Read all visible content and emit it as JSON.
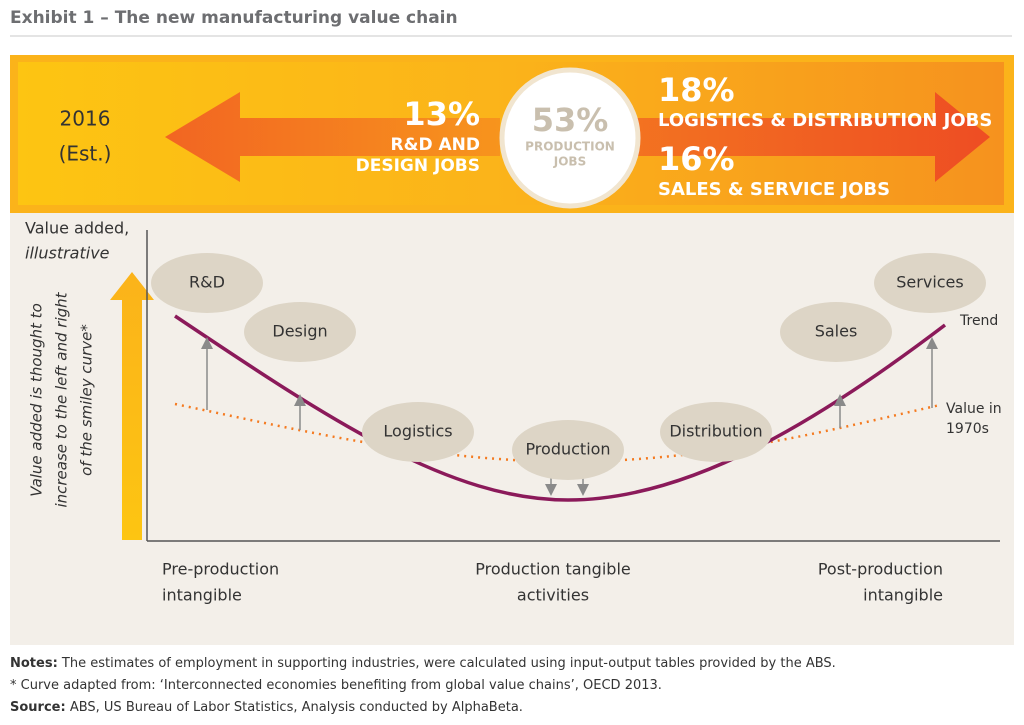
{
  "header": {
    "title": "Exhibit 1 – The new manufacturing value chain"
  },
  "banner": {
    "year": "2016",
    "year_note": "(Est.)",
    "left": {
      "percent": "13%",
      "line1": "R&D AND",
      "line2": "DESIGN JOBS"
    },
    "center": {
      "percent": "53%",
      "line1": "PRODUCTION",
      "line2": "JOBS"
    },
    "right_top": {
      "percent": "18%",
      "label": "LOGISTICS & DISTRIBUTION JOBS"
    },
    "right_bottom": {
      "percent": "16%",
      "label": "SALES & SERVICE JOBS"
    }
  },
  "diagram": {
    "y_label": {
      "line1": "Value added,",
      "line2": "illustrative"
    },
    "side_note": [
      "Value added is thought to",
      "increase to the left and right",
      "of the smiley curve*"
    ],
    "stages": [
      "R&D",
      "Design",
      "Logistics",
      "Production",
      "Distribution",
      "Sales",
      "Services"
    ],
    "trend_label": "Trend",
    "baseline_label": [
      "Value in",
      "1970s"
    ],
    "x_labels": {
      "left": [
        "Pre-production",
        "intangible"
      ],
      "center": [
        "Production tangible",
        "activities"
      ],
      "right": [
        "Post-production",
        "intangible"
      ]
    }
  },
  "notes": [
    {
      "label": "Notes:",
      "text": " The estimates of employment in supporting industries, were calculated using input-output tables provided by the ABS."
    },
    {
      "label": "",
      "text": "* Curve adapted from: ‘Interconnected economies benefiting from global value chains’, OECD 2013."
    },
    {
      "label": "Source:",
      "text": " ABS, US Bureau of Labor Statistics, Analysis conducted by AlphaBeta."
    }
  ]
}
